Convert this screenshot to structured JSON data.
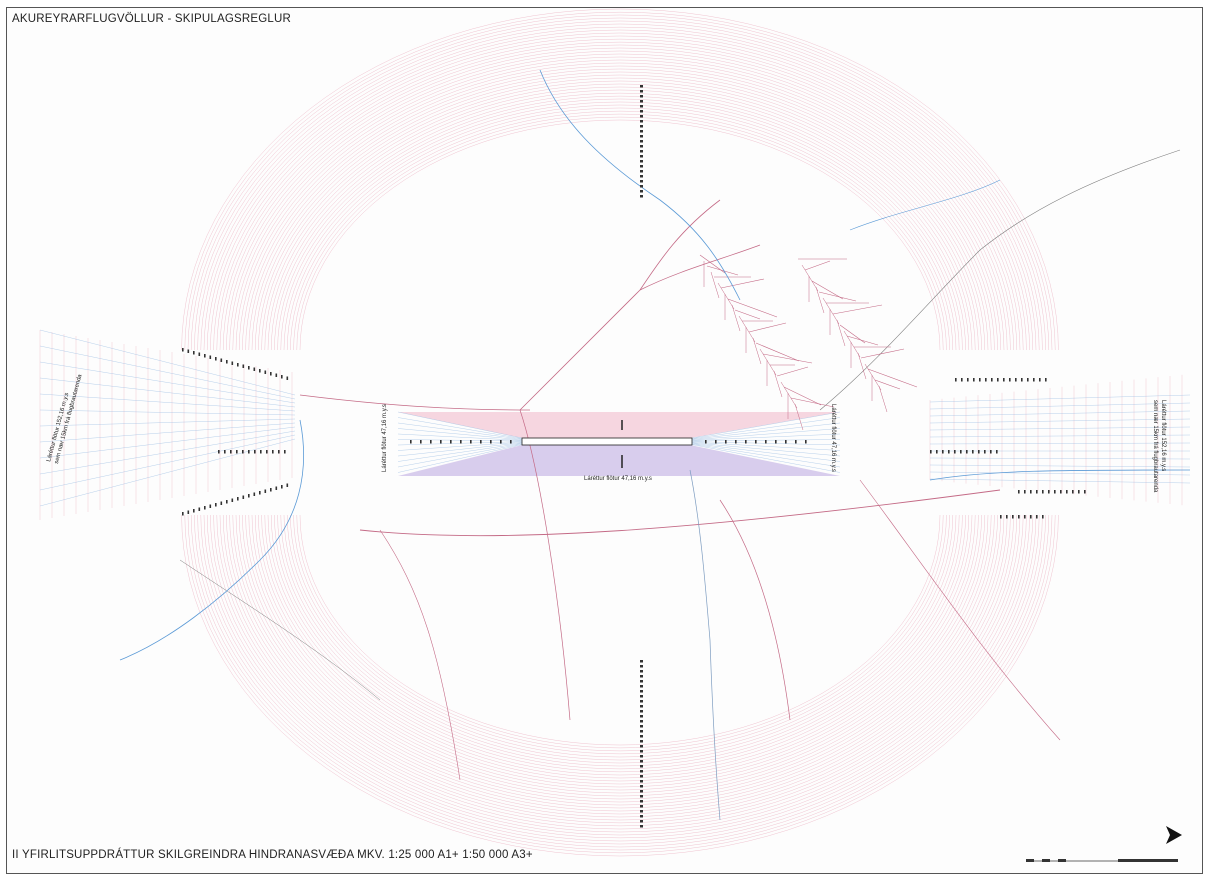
{
  "map": {
    "title": "AKUREYRARFLUGVÖLLUR - SKIPULAGSREGLUR",
    "subtitle": "II YFIRLITSUPPDRÁTTUR SKILGREINDRA HINDRANASVÆÐA MKV. 1:25 000 A1+   1:50 000 A3+",
    "labels": {
      "left_runway_end": "Láréttur flötur 47,16 m.y.s",
      "right_runway_end": "Láréttur flötur 47,16 m.y.s",
      "runway_bottom": "Láréttur flötur 47,16 m.y.s",
      "left_far": "Láréttur flötur 152,16 m.y.s\nsem nær 15km frá flugbrautarenda",
      "right_far": "Láréttur flötur 152,16 m.y.s\nsem nær 15km frá flugbrautarenda"
    },
    "colors": {
      "red_lines": "#e58fa6",
      "blue_lines": "#8fb6e0",
      "roads": "#c46a86",
      "rivers": "#5b9ad6",
      "frame": "#555555"
    },
    "icons": {
      "north_arrow": "north-arrow-icon",
      "scale_bar": "scale-bar"
    }
  }
}
